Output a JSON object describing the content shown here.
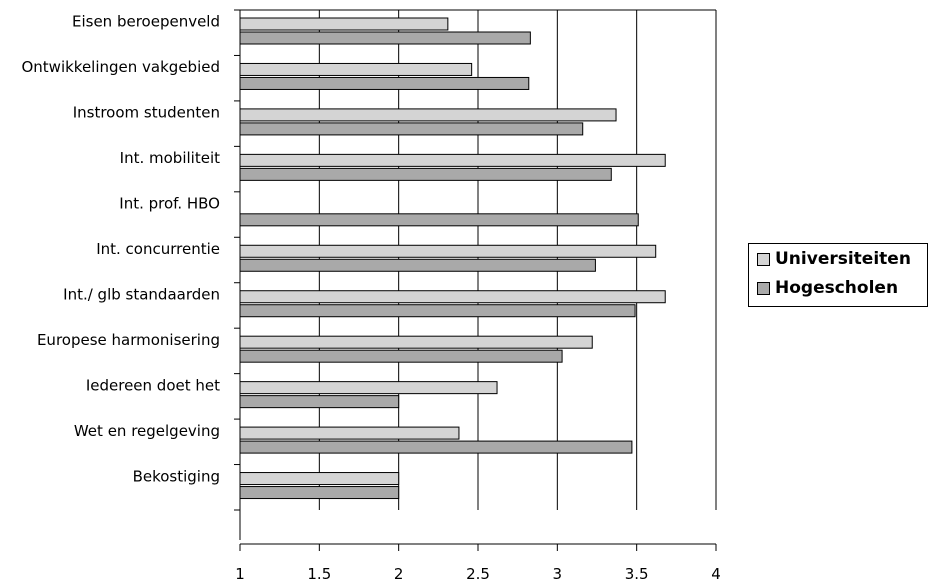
{
  "chart_data": {
    "type": "bar",
    "orientation": "horizontal",
    "categories": [
      "Eisen beroepenveld",
      "Ontwikkelingen vakgebied",
      "Instroom studenten",
      "Int. mobiliteit",
      "Int. prof. HBO",
      "Int. concurrentie",
      "Int./ glb standaarden",
      "Europese harmonisering",
      "Iedereen doet het",
      "Wet en regelgeving",
      "Bekostiging"
    ],
    "series": [
      {
        "name": "Universiteiten",
        "color": "#d4d4d4",
        "values": [
          2.31,
          2.46,
          3.37,
          3.68,
          null,
          3.62,
          3.68,
          3.22,
          2.62,
          2.38,
          2.0
        ]
      },
      {
        "name": "Hogescholen",
        "color": "#a9a9a9",
        "values": [
          2.83,
          2.82,
          3.16,
          3.34,
          3.51,
          3.24,
          3.49,
          3.03,
          2.0,
          3.47,
          2.0
        ]
      }
    ],
    "xlim": [
      1,
      4
    ],
    "x_ticks": [
      "1",
      "1.5",
      "2",
      "2.5",
      "3",
      "3.5",
      "4"
    ],
    "grid": true,
    "legend_position": "right"
  }
}
